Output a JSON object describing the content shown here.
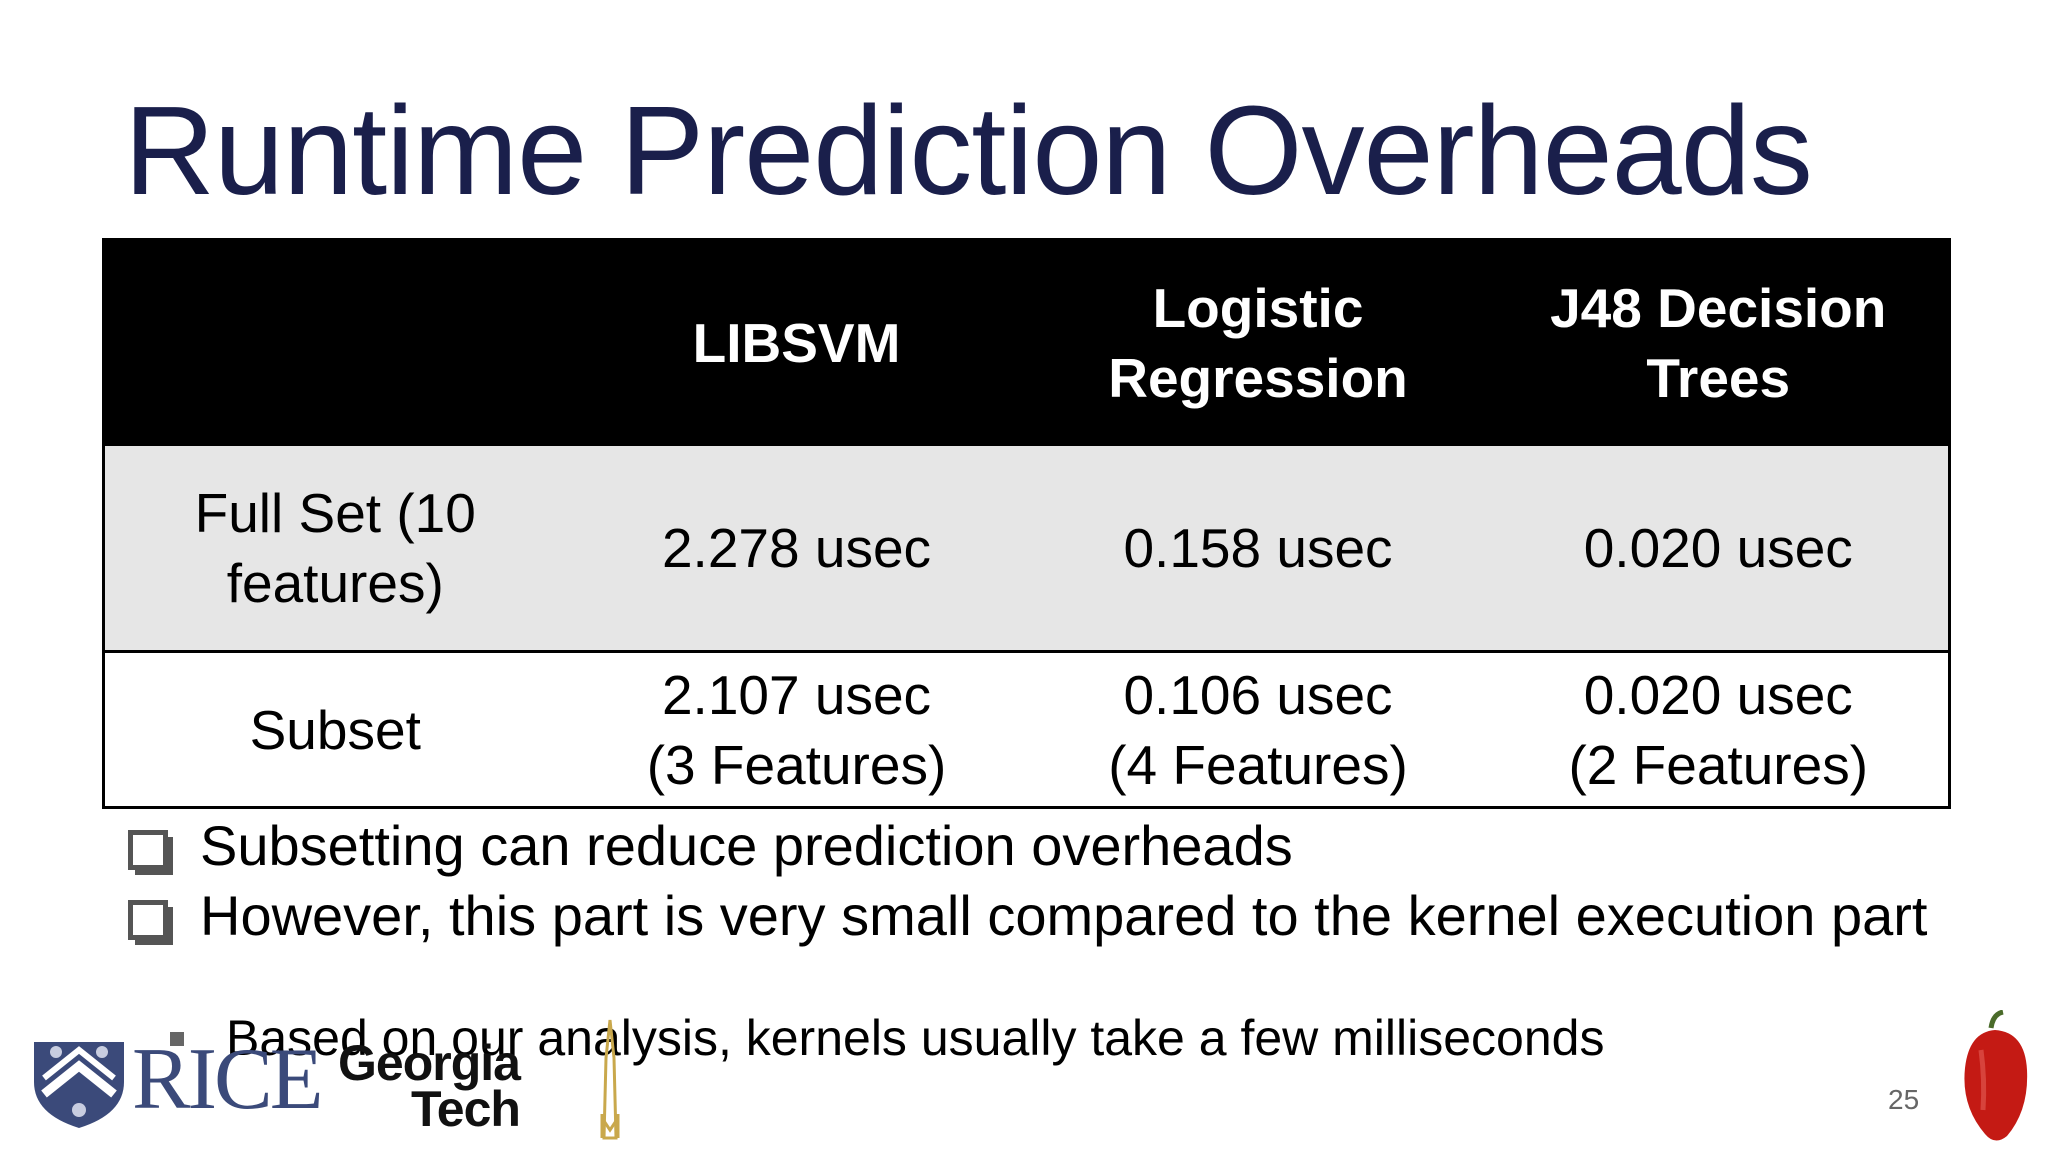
{
  "slide": {
    "title": "Runtime Prediction Overheads",
    "page_number": "25"
  },
  "table": {
    "headers": [
      "",
      "LIBSVM",
      "Logistic Regression",
      "J48 Decision Trees"
    ],
    "rows": [
      {
        "label": "Full Set (10 features)",
        "cells": [
          "2.278 usec",
          "0.158 usec",
          "0.020 usec"
        ]
      },
      {
        "label": "Subset",
        "cells": [
          {
            "value": "2.107 usec",
            "note": "(3 Features)"
          },
          {
            "value": "0.106 usec",
            "note": "(4 Features)"
          },
          {
            "value": "0.020 usec",
            "note": "(2 Features)"
          }
        ]
      }
    ]
  },
  "bullets": [
    "Subsetting can reduce prediction overheads",
    "However, this part is very small compared to the kernel execution part"
  ],
  "sub_bullets": [
    "Based on our analysis, kernels usually take a few milliseconds"
  ],
  "logos": {
    "rice": "RICE",
    "georgia_tech_line1": "Georgia",
    "georgia_tech_line2": "Tech"
  },
  "colors": {
    "title": "#1a1f4b",
    "header_bg": "#000000",
    "row_shade": "#e6e6e6",
    "rice_blue": "#3b4a7a",
    "pepper_red": "#c41a14"
  }
}
